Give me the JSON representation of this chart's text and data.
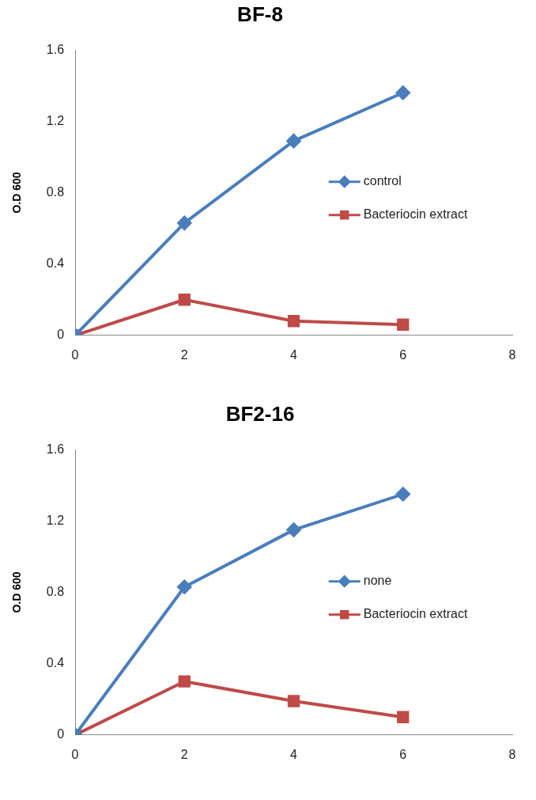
{
  "chart_data": [
    {
      "type": "line",
      "title": "BF-8",
      "ylabel": "O.D 600",
      "x": [
        0,
        2,
        4,
        6
      ],
      "xlim": [
        0,
        8
      ],
      "xticks": [
        0,
        2,
        4,
        6,
        8
      ],
      "ylim": [
        0,
        1.6
      ],
      "yticks": [
        0,
        0.4,
        0.8,
        1.2,
        1.6
      ],
      "grid": false,
      "legend": "right",
      "series": [
        {
          "name": "control",
          "color": "#4a7ebb",
          "marker": "diamond",
          "values": [
            0,
            0.63,
            1.09,
            1.36
          ]
        },
        {
          "name": "Bacteriocin extract",
          "color": "#be4b48",
          "marker": "square",
          "values": [
            0,
            0.2,
            0.08,
            0.06
          ]
        }
      ]
    },
    {
      "type": "line",
      "title": "BF2-16",
      "ylabel": "O.D 600",
      "x": [
        0,
        2,
        4,
        6
      ],
      "xlim": [
        0,
        8
      ],
      "xticks": [
        0,
        2,
        4,
        6,
        8
      ],
      "ylim": [
        0,
        1.6
      ],
      "yticks": [
        0,
        0.4,
        0.8,
        1.2,
        1.6
      ],
      "grid": false,
      "legend": "right",
      "series": [
        {
          "name": "none",
          "color": "#4a7ebb",
          "marker": "diamond",
          "values": [
            0,
            0.83,
            1.15,
            1.35
          ]
        },
        {
          "name": "Bacteriocin extract",
          "color": "#be4b48",
          "marker": "square",
          "values": [
            0,
            0.3,
            0.19,
            0.1
          ]
        }
      ]
    }
  ]
}
